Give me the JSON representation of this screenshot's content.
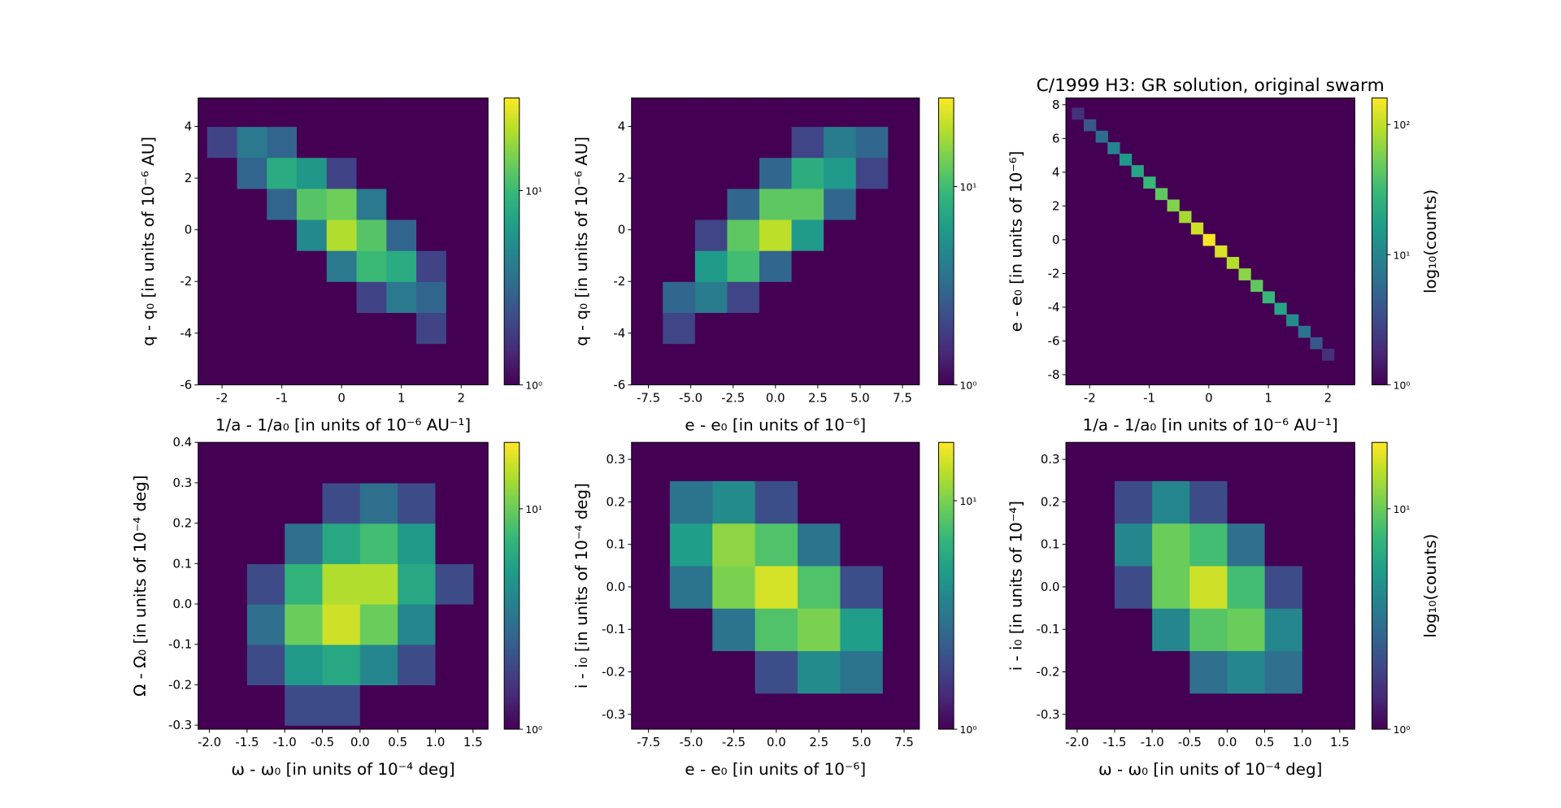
{
  "chart_data": [
    {
      "type": "hexbin",
      "xlabel": "1/a - 1/a₀ [in units of 10⁻⁶ AU⁻¹]",
      "ylabel": "q - q₀ [in units of 10⁻⁶ AU]",
      "xlim": [
        -2.4,
        2.45
      ],
      "ylim": [
        -6,
        5.1
      ],
      "xticks": [
        -2,
        -1,
        0,
        1,
        2
      ],
      "yticks": [
        -6,
        -4,
        -2,
        0,
        2,
        4
      ],
      "x": [
        -2,
        -1.5,
        -1,
        -0.5,
        0,
        0.5,
        1,
        1.5,
        2
      ],
      "y": [
        -5,
        -3.8,
        -2.6,
        -1.4,
        -0.2,
        1,
        2.2,
        3.4,
        4.6
      ],
      "counts": [
        [
          0,
          0,
          0,
          0,
          0,
          0,
          0,
          1,
          1
        ],
        [
          0,
          0,
          0,
          0,
          0,
          0,
          1,
          2,
          1
        ],
        [
          0,
          0,
          0,
          0,
          1,
          2,
          4,
          3,
          1
        ],
        [
          0,
          0,
          0,
          1,
          4,
          10,
          8,
          2,
          0
        ],
        [
          0,
          0,
          1,
          5,
          20,
          12,
          3,
          0,
          0
        ],
        [
          0,
          1,
          3,
          12,
          14,
          4,
          1,
          0,
          0
        ],
        [
          1,
          3,
          8,
          6,
          2,
          0,
          0,
          0,
          0
        ],
        [
          2,
          4,
          3,
          1,
          0,
          0,
          0,
          0,
          0
        ],
        [
          1,
          1,
          1,
          0,
          0,
          0,
          0,
          0,
          0
        ]
      ],
      "clim": [
        1,
        30
      ],
      "cticks": [
        {
          "value": 1,
          "label": "10⁰"
        },
        {
          "value": 10,
          "label": "10¹"
        }
      ],
      "cmap": "viridis",
      "facecolor": "#440154"
    },
    {
      "type": "hexbin",
      "xlabel": "e - e₀ [in units of 10⁻⁶]",
      "ylabel": "q - q₀ [in units of 10⁻⁶ AU]",
      "xlim": [
        -8.5,
        8.5
      ],
      "ylim": [
        -6,
        5.1
      ],
      "xticks": [
        -7.5,
        {
          "value": -5,
          "label": "-5.0"
        },
        -2.5,
        {
          "value": 0,
          "label": "0.0"
        },
        2.5,
        {
          "value": 5,
          "label": "5.0"
        },
        7.5
      ],
      "yticks": [
        -6,
        -4,
        -2,
        0,
        2,
        4
      ],
      "x": [
        -7.6,
        -5.7,
        -3.8,
        -1.9,
        0,
        1.9,
        3.8,
        5.7,
        7.6
      ],
      "y": [
        -5,
        -3.8,
        -2.6,
        -1.4,
        -0.2,
        1,
        2.2,
        3.4,
        4.6
      ],
      "counts": [
        [
          1,
          0,
          0,
          0,
          0,
          0,
          0,
          0,
          0
        ],
        [
          1,
          2,
          1,
          0,
          0,
          0,
          0,
          0,
          0
        ],
        [
          0,
          3,
          4,
          2,
          0,
          0,
          0,
          0,
          0
        ],
        [
          0,
          1,
          6,
          10,
          3,
          0,
          0,
          0,
          0
        ],
        [
          0,
          0,
          2,
          12,
          20,
          6,
          1,
          0,
          0
        ],
        [
          0,
          0,
          0,
          3,
          12,
          12,
          3,
          0,
          0
        ],
        [
          0,
          0,
          0,
          0,
          3,
          8,
          6,
          2,
          0
        ],
        [
          0,
          0,
          0,
          0,
          0,
          2,
          4,
          3,
          1
        ],
        [
          0,
          0,
          0,
          0,
          0,
          0,
          1,
          1,
          1
        ]
      ],
      "clim": [
        1,
        28
      ],
      "cticks": [
        {
          "value": 1,
          "label": "10⁰"
        },
        {
          "value": 10,
          "label": "10¹"
        }
      ],
      "cmap": "viridis",
      "facecolor": "#440154"
    },
    {
      "type": "hexbin",
      "title": "C/1999 H3: GR solution, original swarm",
      "xlabel": "1/a - 1/a₀ [in units of 10⁻⁶ AU⁻¹]",
      "ylabel": "e - e₀ [in units of 10⁻⁶]",
      "xlim": [
        -2.4,
        2.45
      ],
      "ylim": [
        -8.6,
        8.4
      ],
      "xticks": [
        -2,
        -1,
        0,
        1,
        2
      ],
      "yticks": [
        -8,
        -6,
        -4,
        -2,
        0,
        2,
        4,
        6,
        8
      ],
      "points_x": [
        -2.2,
        -2.0,
        -1.8,
        -1.6,
        -1.4,
        -1.2,
        -1.0,
        -0.8,
        -0.6,
        -0.4,
        -0.2,
        0,
        0.2,
        0.4,
        0.6,
        0.8,
        1.0,
        1.2,
        1.4,
        1.6,
        1.8,
        2.0
      ],
      "points_y": [
        7.48,
        6.8,
        6.12,
        5.44,
        4.76,
        4.08,
        3.4,
        2.72,
        2.04,
        1.36,
        0.68,
        0,
        -0.68,
        -1.36,
        -2.04,
        -2.72,
        -3.4,
        -4.08,
        -4.76,
        -5.44,
        -6.12,
        -6.8
      ],
      "values": [
        2,
        4,
        6,
        10,
        15,
        20,
        30,
        45,
        60,
        80,
        110,
        150,
        120,
        90,
        65,
        45,
        30,
        20,
        12,
        7,
        4,
        2
      ],
      "clim": [
        1,
        160
      ],
      "cticks": [
        {
          "value": 1,
          "label": "10⁰"
        },
        {
          "value": 10,
          "label": "10¹"
        },
        {
          "value": 100,
          "label": "10²"
        }
      ],
      "clabel": "log₁₀(counts)",
      "cmap": "viridis",
      "facecolor": "#440154"
    },
    {
      "type": "hexbin",
      "xlabel": "ω - ω₀ [in units of 10⁻⁴ deg]",
      "ylabel": "Ω - Ω₀ [in units of 10⁻⁴ deg]",
      "xlim": [
        -2.15,
        1.7
      ],
      "ylim": [
        -0.31,
        0.4
      ],
      "xticks": [
        {
          "value": -2,
          "label": "-2.0"
        },
        -1.5,
        {
          "value": -1,
          "label": "-1.0"
        },
        -0.5,
        {
          "value": 0,
          "label": "0.0"
        },
        0.5,
        {
          "value": 1,
          "label": "1.0"
        },
        1.5
      ],
      "yticks": [
        -0.3,
        -0.2,
        -0.1,
        {
          "value": 0,
          "label": "0.0"
        },
        0.1,
        0.2,
        0.3,
        0.4
      ],
      "x": [
        -1.75,
        -1.25,
        -0.75,
        -0.25,
        0.25,
        0.75,
        1.25
      ],
      "y": [
        -0.25,
        -0.15,
        -0.05,
        0.05,
        0.15,
        0.25,
        0.35
      ],
      "counts": [
        [
          0,
          1,
          2,
          2,
          1,
          1,
          0
        ],
        [
          0,
          2,
          5,
          6,
          4,
          2,
          0
        ],
        [
          1,
          3,
          10,
          16,
          10,
          4,
          1
        ],
        [
          1,
          2,
          7,
          14,
          14,
          6,
          2
        ],
        [
          0,
          1,
          3,
          6,
          8,
          5,
          1
        ],
        [
          0,
          0,
          1,
          2,
          3,
          2,
          1
        ],
        [
          0,
          0,
          0,
          1,
          0,
          0,
          0
        ]
      ],
      "clim": [
        1,
        20
      ],
      "cticks": [
        {
          "value": 1,
          "label": "10⁰"
        },
        {
          "value": 10,
          "label": "10¹"
        }
      ],
      "cmap": "viridis",
      "facecolor": "#440154"
    },
    {
      "type": "hexbin",
      "xlabel": "e - e₀ [in units of 10⁻⁶]",
      "ylabel": "i - i₀ [in units of 10⁻⁴ deg]",
      "xlim": [
        -8.5,
        8.4
      ],
      "ylim": [
        -0.335,
        0.34
      ],
      "xticks": [
        -7.5,
        {
          "value": -5,
          "label": "-5.0"
        },
        -2.5,
        {
          "value": 0,
          "label": "0.0"
        },
        2.5,
        {
          "value": 5,
          "label": "5.0"
        },
        7.5
      ],
      "yticks": [
        -0.3,
        -0.2,
        -0.1,
        {
          "value": 0,
          "label": "0.0"
        },
        0.1,
        0.2,
        0.3
      ],
      "x": [
        -7.5,
        -5,
        -2.5,
        0,
        2.5,
        5,
        7.5
      ],
      "y": [
        -0.3,
        -0.2,
        -0.1,
        0,
        0.1,
        0.2,
        0.3
      ],
      "counts": [
        [
          0,
          0,
          0,
          0,
          1,
          1,
          0
        ],
        [
          0,
          0,
          1,
          2,
          4,
          3,
          1
        ],
        [
          0,
          1,
          3,
          8,
          10,
          5,
          1
        ],
        [
          1,
          3,
          10,
          15,
          8,
          2,
          0
        ],
        [
          1,
          5,
          11,
          8,
          3,
          1,
          0
        ],
        [
          1,
          3,
          4,
          2,
          1,
          0,
          0
        ],
        [
          0,
          1,
          1,
          0,
          0,
          0,
          0
        ]
      ],
      "clim": [
        1,
        18
      ],
      "cticks": [
        {
          "value": 1,
          "label": "10⁰"
        },
        {
          "value": 10,
          "label": "10¹"
        }
      ],
      "cmap": "viridis",
      "facecolor": "#440154"
    },
    {
      "type": "hexbin",
      "xlabel": "ω - ω₀ [in units of 10⁻⁴ deg]",
      "ylabel": "i - i₀ [in units of 10⁻⁴]",
      "xlim": [
        -2.15,
        1.7
      ],
      "ylim": [
        -0.335,
        0.34
      ],
      "xticks": [
        {
          "value": -2,
          "label": "-2.0"
        },
        -1.5,
        {
          "value": -1,
          "label": "-1.0"
        },
        -0.5,
        {
          "value": 0,
          "label": "0.0"
        },
        0.5,
        {
          "value": 1,
          "label": "1.0"
        },
        1.5
      ],
      "yticks": [
        -0.3,
        -0.2,
        -0.1,
        {
          "value": 0,
          "label": "0.0"
        },
        0.1,
        0.2,
        0.3
      ],
      "x": [
        -1.75,
        -1.25,
        -0.75,
        -0.25,
        0.25,
        0.75,
        1.25
      ],
      "y": [
        -0.3,
        -0.2,
        -0.1,
        0,
        0.1,
        0.2,
        0.3
      ],
      "counts": [
        [
          0,
          0,
          0,
          1,
          1,
          1,
          0
        ],
        [
          0,
          0,
          1,
          3,
          4,
          3,
          1
        ],
        [
          0,
          1,
          4,
          9,
          10,
          4,
          1
        ],
        [
          0,
          2,
          10,
          16,
          8,
          2,
          0
        ],
        [
          1,
          4,
          10,
          8,
          3,
          1,
          0
        ],
        [
          1,
          2,
          4,
          2,
          1,
          0,
          0
        ],
        [
          0,
          1,
          1,
          0,
          0,
          0,
          0
        ]
      ],
      "clim": [
        1,
        20
      ],
      "cticks": [
        {
          "value": 1,
          "label": "10⁰"
        },
        {
          "value": 10,
          "label": "10¹"
        }
      ],
      "clabel": "log₁₀(counts)",
      "cmap": "viridis",
      "facecolor": "#440154"
    }
  ]
}
